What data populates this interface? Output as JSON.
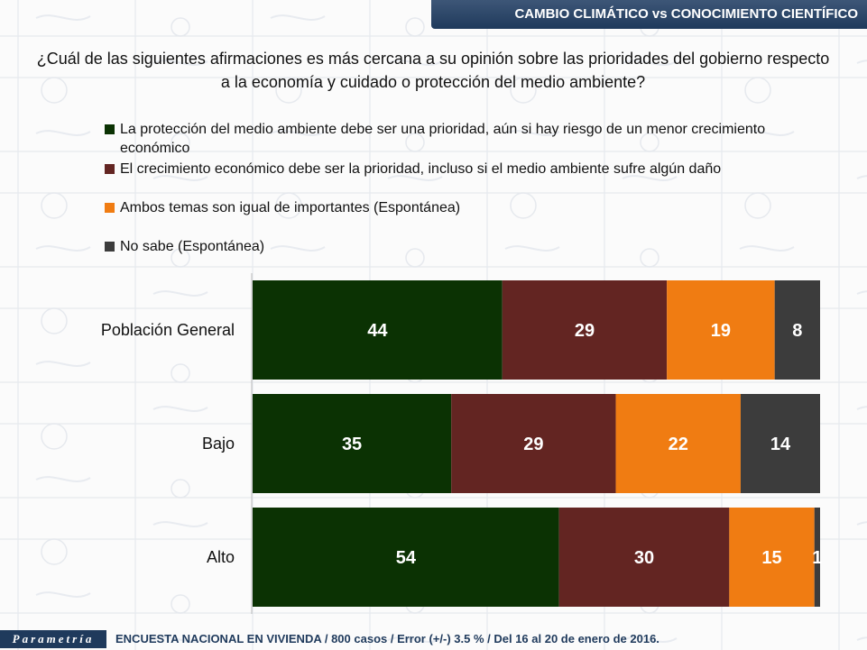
{
  "header": {
    "title": "CAMBIO CLIMÁTICO vs CONOCIMIENTO CIENTÍFICO"
  },
  "question": "¿Cuál de las siguientes afirmaciones es más cercana a su opinión sobre las prioridades del gobierno respecto a la economía y cuidado o protección del medio ambiente?",
  "legend": [
    {
      "label": "La protección del medio ambiente debe ser una prioridad, aún si hay riesgo de un menor crecimiento económico",
      "color": "#0b3203"
    },
    {
      "label": "El crecimiento económico debe ser la prioridad, incluso si el medio ambiente sufre algún daño",
      "color": "#632522"
    },
    {
      "label": "Ambos temas son igual de importantes (Espontánea)",
      "color": "#f07c12"
    },
    {
      "label": "No sabe (Espontánea)",
      "color": "#3c3c3c"
    }
  ],
  "chart_data": {
    "type": "bar",
    "orientation": "horizontal",
    "stacked": true,
    "categories": [
      "Población General",
      "Bajo",
      "Alto"
    ],
    "series": [
      {
        "name": "La protección del medio ambiente debe ser una prioridad, aún si hay riesgo de un menor crecimiento económico",
        "color": "#0b3203",
        "values": [
          44,
          35,
          54
        ]
      },
      {
        "name": "El crecimiento económico debe ser la prioridad, incluso si el medio ambiente sufre algún daño",
        "color": "#632522",
        "values": [
          29,
          29,
          30
        ]
      },
      {
        "name": "Ambos temas son igual de importantes (Espontánea)",
        "color": "#f07c12",
        "values": [
          19,
          22,
          15
        ]
      },
      {
        "name": "No sabe (Espontánea)",
        "color": "#3c3c3c",
        "values": [
          8,
          14,
          1
        ]
      }
    ],
    "xlim": [
      0,
      100
    ],
    "legend_position": "top",
    "grid": false
  },
  "footer": {
    "brand": "Parametría",
    "note": "ENCUESTA NACIONAL EN VIVIENDA / 800 casos / Error (+/-) 3.5 % / Del 16 al 20 de enero de 2016."
  }
}
